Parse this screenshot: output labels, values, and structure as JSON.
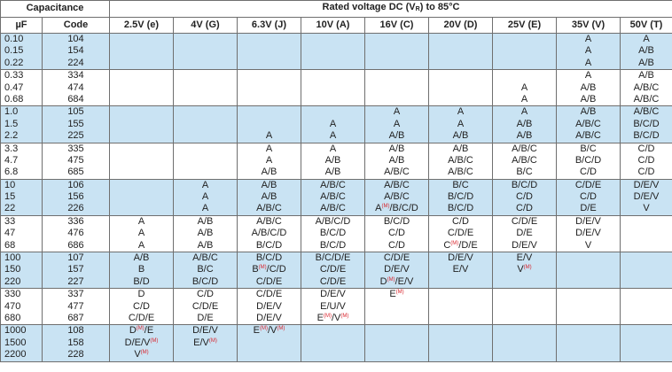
{
  "header": {
    "capacitance": "Capacitance",
    "rated_voltage_prefix": "Rated voltage DC (V",
    "rated_voltage_sub": "R",
    "rated_voltage_suffix": ") to 85°C",
    "uf": "µF",
    "code": "Code",
    "voltages": [
      "2.5V (e)",
      "4V (G)",
      "6.3V (J)",
      "10V (A)",
      "16V (C)",
      "20V (D)",
      "25V (E)",
      "35V (V)",
      "50V (T)"
    ]
  },
  "marker": "(M)",
  "colors": {
    "band_blue": "#c9e3f3",
    "marker_red": "#d9242c",
    "grid": "#6f6f6f"
  },
  "bands": [
    {
      "uf": [
        "0.10",
        "0.15",
        "0.22"
      ],
      "code": [
        "104",
        "154",
        "224"
      ],
      "cells": [
        [],
        [],
        [],
        [],
        [],
        [],
        [],
        [
          "A",
          "A",
          "A"
        ],
        [
          "A",
          "A/B",
          "A/B"
        ]
      ]
    },
    {
      "uf": [
        "0.33",
        "0.47",
        "0.68"
      ],
      "code": [
        "334",
        "474",
        "684"
      ],
      "cells": [
        [],
        [],
        [],
        [],
        [],
        [],
        [
          "",
          "A",
          "A"
        ],
        [
          "A",
          "A/B",
          "A/B"
        ],
        [
          "A/B",
          "A/B/C",
          "A/B/C"
        ]
      ]
    },
    {
      "uf": [
        "1.0",
        "1.5",
        "2.2"
      ],
      "code": [
        "105",
        "155",
        "225"
      ],
      "cells": [
        [],
        [],
        [
          "",
          "",
          "A"
        ],
        [
          "",
          "A",
          "A"
        ],
        [
          "A",
          "A",
          "A/B"
        ],
        [
          "A",
          "A",
          "A/B"
        ],
        [
          "A",
          "A/B",
          "A/B"
        ],
        [
          "A/B",
          "A/B/C",
          "A/B/C"
        ],
        [
          "A/B/C",
          "B/C/D",
          "B/C/D"
        ]
      ]
    },
    {
      "uf": [
        "3.3",
        "4.7",
        "6.8"
      ],
      "code": [
        "335",
        "475",
        "685"
      ],
      "cells": [
        [],
        [],
        [
          "A",
          "A",
          "A/B"
        ],
        [
          "A",
          "A/B",
          "A/B"
        ],
        [
          "A/B",
          "A/B",
          "A/B/C"
        ],
        [
          "A/B",
          "A/B/C",
          "A/B/C"
        ],
        [
          "A/B/C",
          "A/B/C",
          "B/C"
        ],
        [
          "B/C",
          "B/C/D",
          "C/D"
        ],
        [
          "C/D",
          "C/D",
          "C/D"
        ]
      ]
    },
    {
      "uf": [
        "10",
        "15",
        "22"
      ],
      "code": [
        "106",
        "156",
        "226"
      ],
      "cells": [
        [],
        [
          "A",
          "A",
          "A"
        ],
        [
          "A/B",
          "A/B",
          "A/B/C"
        ],
        [
          "A/B/C",
          "A/B/C",
          "A/B/C"
        ],
        [
          "A/B/C",
          "A/B/C",
          [
            "A",
            "(M)",
            "/B/C/D"
          ]
        ],
        [
          "B/C",
          "B/C/D",
          "B/C/D"
        ],
        [
          "B/C/D",
          "C/D",
          "C/D"
        ],
        [
          "C/D/E",
          "C/D",
          "D/E"
        ],
        [
          "D/E/V",
          "D/E/V",
          "V"
        ]
      ]
    },
    {
      "uf": [
        "33",
        "47",
        "68"
      ],
      "code": [
        "336",
        "476",
        "686"
      ],
      "cells": [
        [
          "A",
          "A",
          "A"
        ],
        [
          "A/B",
          "A/B",
          "A/B"
        ],
        [
          "A/B/C",
          "A/B/C/D",
          "B/C/D"
        ],
        [
          "A/B/C/D",
          "B/C/D",
          "B/C/D"
        ],
        [
          "B/C/D",
          "C/D",
          "C/D"
        ],
        [
          "C/D",
          "C/D/E",
          [
            "C",
            "(M)",
            "/D/E"
          ]
        ],
        [
          "C/D/E",
          "D/E",
          "D/E/V"
        ],
        [
          "D/E/V",
          "D/E/V",
          "V"
        ],
        []
      ]
    },
    {
      "uf": [
        "100",
        "150",
        "220"
      ],
      "code": [
        "107",
        "157",
        "227"
      ],
      "cells": [
        [
          "A/B",
          "B",
          "B/D"
        ],
        [
          "A/B/C",
          "B/C",
          "B/C/D"
        ],
        [
          "B/C/D",
          [
            "B",
            "(M)",
            "/C/D"
          ],
          "C/D/E"
        ],
        [
          "B/C/D/E",
          "C/D/E",
          "C/D/E"
        ],
        [
          "C/D/E",
          "D/E/V",
          [
            "D",
            "(M)",
            "/E/V"
          ]
        ],
        [
          "D/E/V",
          "E/V"
        ],
        [
          "E/V",
          [
            "V",
            "(M)",
            ""
          ]
        ],
        [],
        []
      ]
    },
    {
      "uf": [
        "330",
        "470",
        "680"
      ],
      "code": [
        "337",
        "477",
        "687"
      ],
      "cells": [
        [
          "D",
          "C/D",
          "C/D/E"
        ],
        [
          "C/D",
          "C/D/E",
          "D/E"
        ],
        [
          "C/D/E",
          "D/E/V",
          "D/E/V"
        ],
        [
          "D/E/V",
          "E/U/V",
          [
            "E",
            "(M)",
            "/V",
            "(M)",
            ""
          ]
        ],
        [
          [
            "E",
            "(M)",
            ""
          ]
        ],
        [],
        [],
        [],
        []
      ]
    },
    {
      "uf": [
        "1000",
        "1500",
        "2200"
      ],
      "code": [
        "108",
        "158",
        "228"
      ],
      "cells": [
        [
          [
            "D",
            "(M)",
            "/E"
          ],
          [
            "D/E/V",
            "(M)",
            ""
          ],
          [
            "V",
            "(M)",
            ""
          ]
        ],
        [
          "D/E/V",
          [
            "E/V",
            "(M)",
            ""
          ]
        ],
        [
          [
            "E",
            "(M)",
            "/V",
            "(M)",
            ""
          ]
        ],
        [],
        [],
        [],
        [],
        [],
        []
      ]
    }
  ]
}
